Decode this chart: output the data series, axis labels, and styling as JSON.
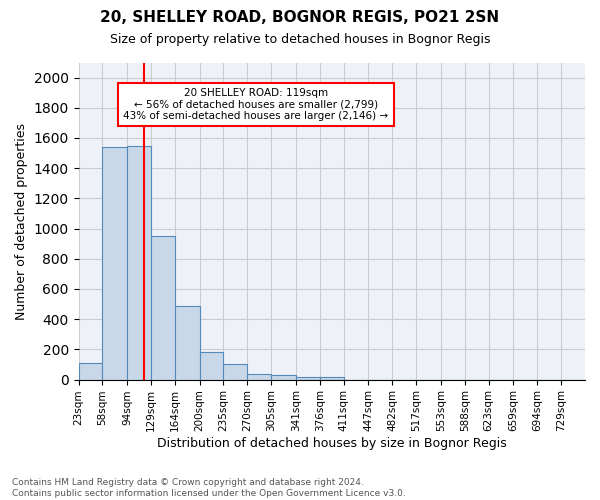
{
  "title1": "20, SHELLEY ROAD, BOGNOR REGIS, PO21 2SN",
  "title2": "Size of property relative to detached houses in Bognor Regis",
  "xlabel": "Distribution of detached houses by size in Bognor Regis",
  "ylabel": "Number of detached properties",
  "footer": "Contains HM Land Registry data © Crown copyright and database right 2024.\nContains public sector information licensed under the Open Government Licence v3.0.",
  "bin_labels": [
    "23sqm",
    "58sqm",
    "94sqm",
    "129sqm",
    "164sqm",
    "200sqm",
    "235sqm",
    "270sqm",
    "305sqm",
    "341sqm",
    "376sqm",
    "411sqm",
    "447sqm",
    "482sqm",
    "517sqm",
    "553sqm",
    "588sqm",
    "623sqm",
    "659sqm",
    "694sqm",
    "729sqm"
  ],
  "bar_heights": [
    110,
    1540,
    1550,
    950,
    490,
    185,
    100,
    40,
    28,
    18,
    18,
    0,
    0,
    0,
    0,
    0,
    0,
    0,
    0,
    0,
    0
  ],
  "bar_color": "#c8d8e8",
  "bar_edge_color": "#5588bb",
  "property_line_x": 119,
  "property_line_label": "20 SHELLEY ROAD: 119sqm",
  "annotation_line1": "← 56% of detached houses are smaller (2,799)",
  "annotation_line2": "43% of semi-detached houses are larger (2,146) →",
  "vline_color": "red",
  "ylim": [
    0,
    2100
  ],
  "yticks": [
    0,
    200,
    400,
    600,
    800,
    1000,
    1200,
    1400,
    1600,
    1800,
    2000
  ],
  "bin_edges": [
    23,
    58,
    94,
    129,
    164,
    200,
    235,
    270,
    305,
    341,
    376,
    411,
    447,
    482,
    517,
    553,
    588,
    623,
    659,
    694,
    729,
    764
  ]
}
